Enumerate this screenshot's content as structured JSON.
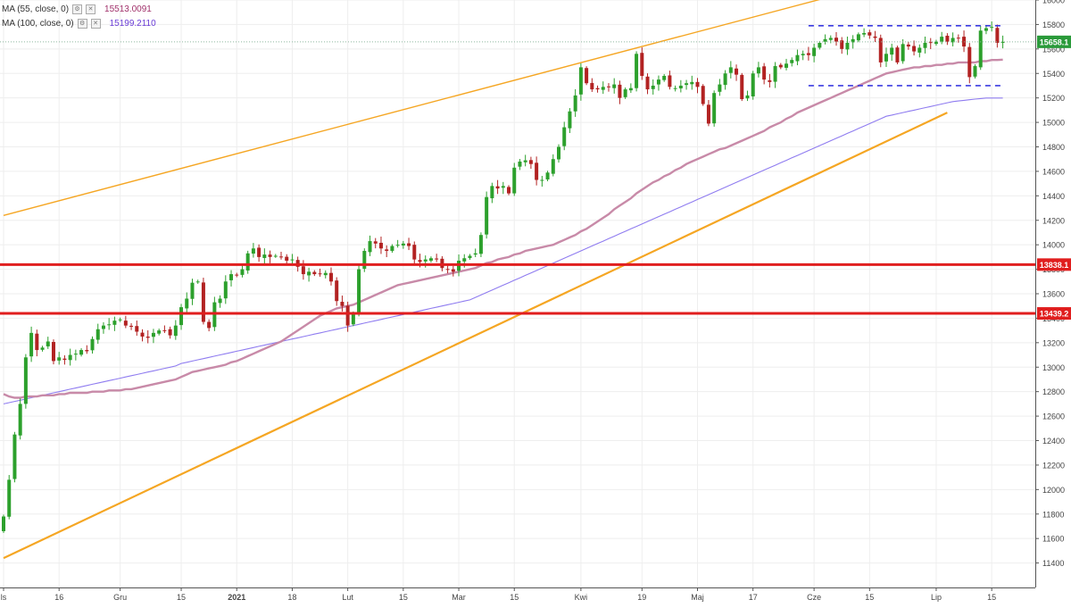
{
  "legend": {
    "ma55_label": "MA (55, close, 0)",
    "ma55_value": "15513.0091",
    "ma100_label": "MA (100, close, 0)",
    "ma100_value": "15199.2110",
    "settings_icon": "gear-icon",
    "close_icon": "close-icon"
  },
  "chart_data": {
    "type": "candlestick",
    "ylim": [
      11200,
      16000
    ],
    "y_ticks": [
      11400,
      11600,
      11800,
      12000,
      12200,
      12400,
      12600,
      12800,
      13000,
      13200,
      13400,
      13600,
      13800,
      14000,
      14200,
      14400,
      14600,
      14800,
      15000,
      15200,
      15400,
      15600,
      15800,
      16000
    ],
    "x_ticks": [
      {
        "label": "ls",
        "index": 0
      },
      {
        "label": "16",
        "index": 10
      },
      {
        "label": "Gru",
        "index": 21
      },
      {
        "label": "15",
        "index": 32
      },
      {
        "label": "2021",
        "index": 42
      },
      {
        "label": "18",
        "index": 52
      },
      {
        "label": "Lut",
        "index": 62
      },
      {
        "label": "15",
        "index": 72
      },
      {
        "label": "Mar",
        "index": 82
      },
      {
        "label": "15",
        "index": 92
      },
      {
        "label": "Kwi",
        "index": 104
      },
      {
        "label": "19",
        "index": 115
      },
      {
        "label": "Maj",
        "index": 125
      },
      {
        "label": "17",
        "index": 135
      },
      {
        "label": "Cze",
        "index": 146
      },
      {
        "label": "15",
        "index": 156
      },
      {
        "label": "Lip",
        "index": 168
      },
      {
        "label": "15",
        "index": 178
      }
    ],
    "closes": [
      11780,
      12080,
      12450,
      12700,
      13080,
      13280,
      13140,
      13160,
      13210,
      13050,
      13080,
      13060,
      13100,
      13110,
      13140,
      13130,
      13230,
      13310,
      13340,
      13350,
      13380,
      13390,
      13340,
      13330,
      13290,
      13250,
      13240,
      13280,
      13300,
      13300,
      13260,
      13340,
      13490,
      13560,
      13690,
      13700,
      13370,
      13320,
      13530,
      13560,
      13700,
      13760,
      13750,
      13800,
      13930,
      13970,
      13900,
      13920,
      13900,
      13910,
      13900,
      13870,
      13880,
      13820,
      13760,
      13780,
      13760,
      13760,
      13770,
      13700,
      13540,
      13500,
      13340,
      13440,
      13800,
      13950,
      14030,
      14010,
      13970,
      13950,
      13990,
      14000,
      14010,
      13990,
      13880,
      13860,
      13880,
      13890,
      13880,
      13810,
      13800,
      13780,
      13870,
      13890,
      13910,
      13930,
      14080,
      14390,
      14480,
      14460,
      14480,
      14420,
      14630,
      14680,
      14690,
      14660,
      14530,
      14530,
      14590,
      14700,
      14800,
      14960,
      15090,
      15220,
      15450,
      15320,
      15270,
      15270,
      15290,
      15290,
      15310,
      15200,
      15270,
      15280,
      15560,
      15380,
      15270,
      15300,
      15350,
      15380,
      15290,
      15280,
      15300,
      15320,
      15330,
      15290,
      15150,
      14990,
      15240,
      15310,
      15400,
      15450,
      15390,
      15190,
      15220,
      15400,
      15450,
      15350,
      15330,
      15460,
      15450,
      15480,
      15510,
      15550,
      15560,
      15550,
      15610,
      15650,
      15680,
      15690,
      15660,
      15600,
      15650,
      15680,
      15720,
      15730,
      15710,
      15690,
      15490,
      15560,
      15610,
      15490,
      15640,
      15620,
      15580,
      15610,
      15650,
      15650,
      15660,
      15700,
      15660,
      15690,
      15690,
      15620,
      15370,
      15460,
      15750,
      15770,
      15780,
      15650,
      15658
    ],
    "ma55": [
      12780,
      12760,
      12750,
      12750,
      12760,
      12760,
      12760,
      12770,
      12770,
      12770,
      12780,
      12780,
      12790,
      12790,
      12790,
      12790,
      12800,
      12800,
      12800,
      12810,
      12810,
      12810,
      12820,
      12820,
      12830,
      12840,
      12850,
      12860,
      12870,
      12880,
      12890,
      12900,
      12920,
      12940,
      12960,
      12970,
      12980,
      12990,
      13000,
      13010,
      13020,
      13040,
      13050,
      13070,
      13090,
      13110,
      13130,
      13150,
      13170,
      13190,
      13210,
      13240,
      13270,
      13300,
      13330,
      13360,
      13390,
      13420,
      13440,
      13460,
      13480,
      13490,
      13500,
      13510,
      13530,
      13550,
      13570,
      13590,
      13610,
      13630,
      13650,
      13670,
      13680,
      13690,
      13700,
      13710,
      13720,
      13730,
      13740,
      13750,
      13760,
      13770,
      13780,
      13790,
      13800,
      13810,
      13830,
      13850,
      13860,
      13880,
      13890,
      13900,
      13920,
      13930,
      13950,
      13960,
      13970,
      13980,
      13990,
      14000,
      14020,
      14040,
      14060,
      14080,
      14110,
      14130,
      14160,
      14190,
      14220,
      14250,
      14290,
      14320,
      14350,
      14380,
      14420,
      14450,
      14480,
      14510,
      14530,
      14560,
      14580,
      14610,
      14630,
      14660,
      14680,
      14700,
      14720,
      14740,
      14760,
      14780,
      14790,
      14810,
      14830,
      14850,
      14870,
      14890,
      14910,
      14930,
      14960,
      14980,
      15000,
      15030,
      15050,
      15080,
      15100,
      15120,
      15140,
      15160,
      15180,
      15200,
      15220,
      15240,
      15260,
      15280,
      15300,
      15320,
      15340,
      15360,
      15380,
      15400,
      15410,
      15420,
      15430,
      15440,
      15450,
      15450,
      15460,
      15460,
      15470,
      15470,
      15480,
      15480,
      15490,
      15490,
      15490,
      15490,
      15500,
      15500,
      15510,
      15510,
      15513
    ],
    "ma100": [
      12700,
      12710,
      12720,
      12730,
      12740,
      12750,
      12760,
      12770,
      12780,
      12790,
      12800,
      12810,
      12820,
      12830,
      12840,
      12850,
      12860,
      12870,
      12880,
      12890,
      12900,
      12910,
      12920,
      12930,
      12940,
      12950,
      12960,
      12970,
      12980,
      12990,
      13000,
      13010,
      13030,
      13040,
      13050,
      13060,
      13070,
      13080,
      13090,
      13100,
      13110,
      13120,
      13130,
      13140,
      13150,
      13160,
      13170,
      13180,
      13190,
      13200,
      13210,
      13220,
      13230,
      13240,
      13250,
      13260,
      13270,
      13280,
      13290,
      13300,
      13310,
      13320,
      13330,
      13340,
      13350,
      13360,
      13370,
      13380,
      13390,
      13400,
      13410,
      13420,
      13430,
      13440,
      13450,
      13460,
      13470,
      13480,
      13490,
      13500,
      13510,
      13520,
      13530,
      13540,
      13550,
      13570,
      13590,
      13610,
      13630,
      13650,
      13670,
      13690,
      13710,
      13730,
      13750,
      13770,
      13790,
      13810,
      13830,
      13850,
      13870,
      13890,
      13910,
      13930,
      13950,
      13970,
      13990,
      14010,
      14030,
      14050,
      14070,
      14090,
      14110,
      14130,
      14150,
      14170,
      14190,
      14210,
      14230,
      14250,
      14270,
      14290,
      14310,
      14330,
      14350,
      14370,
      14390,
      14410,
      14430,
      14450,
      14470,
      14490,
      14510,
      14530,
      14550,
      14570,
      14590,
      14610,
      14630,
      14650,
      14670,
      14690,
      14710,
      14730,
      14750,
      14770,
      14790,
      14810,
      14830,
      14850,
      14870,
      14890,
      14910,
      14930,
      14950,
      14970,
      14990,
      15010,
      15030,
      15050,
      15060,
      15070,
      15080,
      15090,
      15100,
      15110,
      15120,
      15130,
      15140,
      15150,
      15160,
      15170,
      15175,
      15180,
      15185,
      15190,
      15195,
      15199,
      15199,
      15199,
      15199
    ],
    "horizontal_levels": [
      {
        "value": 13838.1,
        "label": "13838.1",
        "color": "#e01e1e"
      },
      {
        "value": 13439.2,
        "label": "13439.2",
        "color": "#e01e1e"
      }
    ],
    "current_price": {
      "value": 15658.1,
      "label": "15658.1",
      "color": "#2a9a3a"
    },
    "trendlines": [
      {
        "name": "upper",
        "from": {
          "index": 0,
          "value": 14240
        },
        "to": {
          "index": 150,
          "value": 16040
        },
        "color": "#f5a623"
      },
      {
        "name": "lower",
        "from": {
          "index": 0,
          "value": 11440
        },
        "to": {
          "index": 170,
          "value": 15080
        },
        "color": "#f5a623"
      }
    ],
    "range_box": {
      "top": 15790,
      "bottom": 15300,
      "from_index": 145,
      "to_index": 180,
      "color": "#3a3ae0"
    },
    "colors": {
      "up": "#2ca02c",
      "down": "#b22222",
      "ma55": "#c88aa8",
      "ma100": "#8f7cf0",
      "grid": "#eeeeee"
    },
    "grid": true
  }
}
